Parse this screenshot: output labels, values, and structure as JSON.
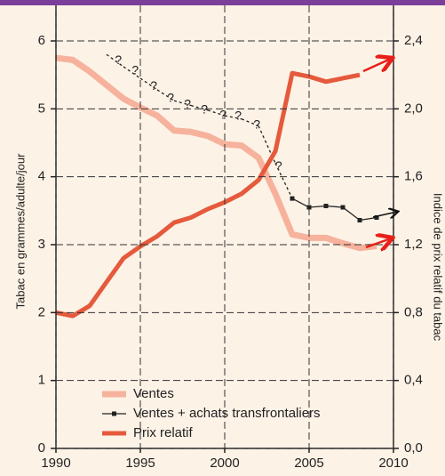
{
  "chart_data": {
    "type": "line",
    "ylabel": "Tabac en grammes/adulte/jour",
    "y2label": "Indice de prix relatif du tabac",
    "x": [
      1990,
      1991,
      1992,
      1993,
      1994,
      1995,
      1996,
      1997,
      1998,
      1999,
      2000,
      2001,
      2002,
      2003,
      2004,
      2005,
      2006,
      2007,
      2008,
      2009
    ],
    "xlim": [
      1990,
      2010
    ],
    "xticks": [
      1990,
      1995,
      2000,
      2005,
      2010
    ],
    "ylim": [
      0,
      6
    ],
    "yticks": [
      0,
      1,
      2,
      3,
      4,
      5,
      6
    ],
    "y2lim": [
      0,
      2.4
    ],
    "y2ticks": [
      {
        "value": 0,
        "label": "0,0"
      },
      {
        "value": 0.4,
        "label": "0,4"
      },
      {
        "value": 0.8,
        "label": "0,8"
      },
      {
        "value": 1.2,
        "label": "1,2"
      },
      {
        "value": 1.6,
        "label": "1,6"
      },
      {
        "value": 2.0,
        "label": "2,0"
      },
      {
        "value": 2.4,
        "label": "2,4"
      }
    ],
    "grid": true,
    "legend": "lower left",
    "series": [
      {
        "name": "Ventes",
        "color": "#f6b29c",
        "width": 7,
        "values": [
          5.75,
          5.72,
          5.55,
          5.35,
          5.15,
          5.02,
          4.9,
          4.68,
          4.66,
          4.6,
          4.48,
          4.46,
          4.28,
          3.75,
          3.15,
          3.1,
          3.1,
          3.02,
          2.95,
          2.98
        ]
      },
      {
        "name": "Ventes + achats transfrontaliers",
        "color": "#222222",
        "width": 1.3,
        "marker": "square",
        "estimated_until": 2003,
        "values": [
          null,
          null,
          null,
          5.8,
          5.62,
          5.45,
          5.28,
          5.12,
          5.05,
          4.98,
          4.9,
          4.85,
          4.75,
          4.2,
          3.68,
          3.55,
          3.57,
          3.55,
          3.36,
          3.4
        ]
      },
      {
        "name": "Prix relatif",
        "color": "#e55a3c",
        "width": 5,
        "axis": "y2",
        "values": [
          0.8,
          0.78,
          0.84,
          0.98,
          1.12,
          1.19,
          1.25,
          1.33,
          1.36,
          1.41,
          1.45,
          1.5,
          1.58,
          1.75,
          2.21,
          2.19,
          2.16,
          2.18,
          2.2,
          null
        ]
      }
    ],
    "annotations": [
      {
        "text": "?",
        "x": 1993.7,
        "y": 5.71
      },
      {
        "text": "?",
        "x": 1994.7,
        "y": 5.56
      },
      {
        "text": "?",
        "x": 1995.8,
        "y": 5.33
      },
      {
        "text": "?",
        "x": 1996.8,
        "y": 5.15
      },
      {
        "text": "?",
        "x": 1997.8,
        "y": 5.06
      },
      {
        "text": "?",
        "x": 1998.8,
        "y": 4.98
      },
      {
        "text": "?",
        "x": 1999.9,
        "y": 4.9
      },
      {
        "text": "?",
        "x": 2000.8,
        "y": 4.89
      },
      {
        "text": "?",
        "x": 2001.9,
        "y": 4.76
      },
      {
        "text": "?",
        "x": 2003.2,
        "y": 4.15
      }
    ]
  }
}
